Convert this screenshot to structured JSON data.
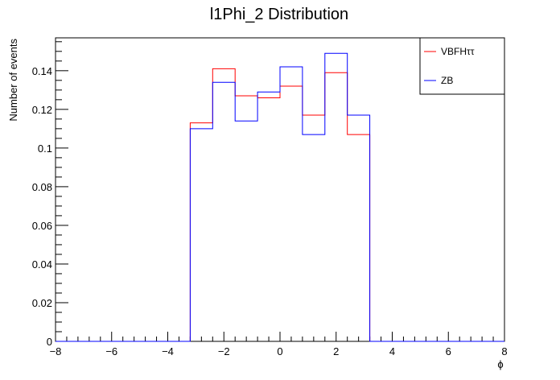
{
  "chart_data": {
    "type": "histogram",
    "title": "l1Phi_2 Distribution",
    "xlabel": "ϕ",
    "ylabel": "Number of events",
    "xlim": [
      -8,
      8
    ],
    "ylim": [
      0,
      0.157
    ],
    "x_ticks": [
      -8,
      -6,
      -4,
      -2,
      0,
      2,
      4,
      6,
      8
    ],
    "x_tick_labels": [
      "−8",
      "−6",
      "−4",
      "−2",
      "0",
      "2",
      "4",
      "6",
      "8"
    ],
    "y_ticks": [
      0,
      0.02,
      0.04,
      0.06,
      0.08,
      0.1,
      0.12,
      0.14
    ],
    "y_tick_labels": [
      "0",
      "0.02",
      "0.04",
      "0.06",
      "0.08",
      "0.1",
      "0.12",
      "0.14"
    ],
    "bin_edges": [
      -3.2,
      -2.4,
      -1.6,
      -0.8,
      0.0,
      0.8,
      1.6,
      2.4,
      3.2
    ],
    "series": [
      {
        "name": "VBFHττ",
        "color": "#ff0000",
        "values": [
          0.113,
          0.141,
          0.127,
          0.126,
          0.132,
          0.117,
          0.139,
          0.107
        ]
      },
      {
        "name": "ZB",
        "color": "#0000ff",
        "values": [
          0.11,
          0.134,
          0.114,
          0.129,
          0.142,
          0.107,
          0.149,
          0.117
        ]
      }
    ],
    "grid": false,
    "legend_position": "top-right"
  }
}
